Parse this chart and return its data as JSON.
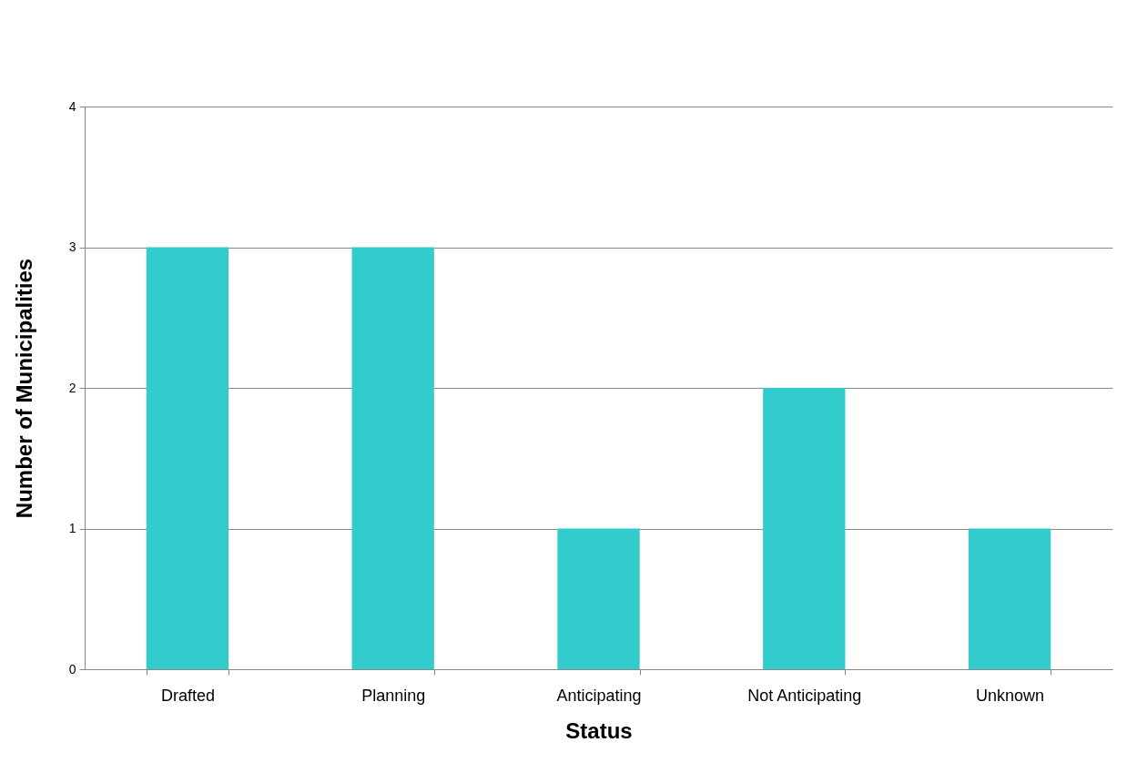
{
  "chart_data": {
    "type": "bar",
    "xlabel": "Status",
    "ylabel": "Number of Municipalities",
    "categories": [
      "Drafted",
      "Planning",
      "Anticipating",
      "Not Anticipating",
      "Unknown"
    ],
    "values": [
      3,
      3,
      1,
      2,
      1
    ],
    "color": "#33cccc",
    "ylim": [
      0,
      4
    ],
    "yticks": [
      0,
      1,
      2,
      3,
      4
    ],
    "grid": "y"
  }
}
